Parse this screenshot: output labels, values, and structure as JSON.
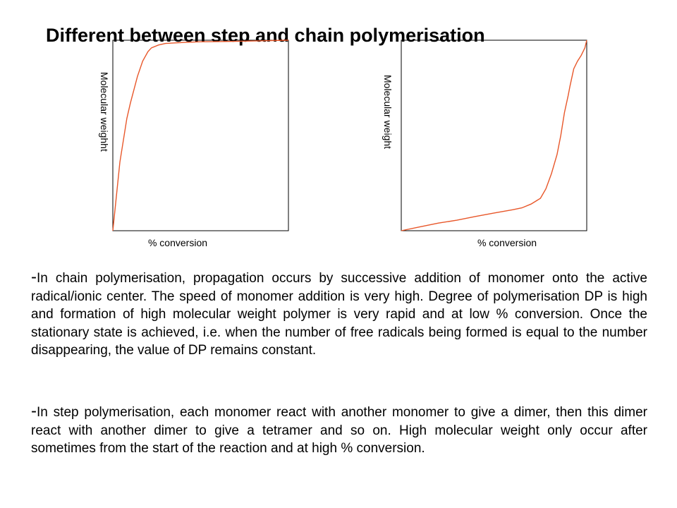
{
  "page": {
    "title": "Different between step and chain polymerisation"
  },
  "chart_data": [
    {
      "type": "line",
      "title": "",
      "xlabel": "% conversion",
      "ylabel": "Molecular weighht",
      "xlim": [
        0,
        100
      ],
      "ylim": [
        0,
        100
      ],
      "grid": false,
      "ticks": false,
      "line_color": "#e8572a",
      "series": [
        {
          "x": [
            0,
            4,
            8,
            10,
            14,
            17,
            20,
            22,
            26,
            30,
            40,
            50,
            60,
            70,
            80,
            90,
            100
          ],
          "y": [
            0,
            36,
            59,
            67,
            81,
            89,
            94,
            96,
            97.5,
            98.3,
            98.8,
            99.2,
            99.3,
            99.4,
            99.6,
            99.8,
            100
          ]
        }
      ]
    },
    {
      "type": "line",
      "title": "",
      "xlabel": "% conversion",
      "ylabel": "Molecular weight",
      "xlim": [
        0,
        100
      ],
      "ylim": [
        0,
        100
      ],
      "grid": false,
      "ticks": false,
      "line_color": "#e8572a",
      "series": [
        {
          "x": [
            0,
            10,
            20,
            30,
            40,
            50,
            60,
            65,
            70,
            75,
            78,
            81,
            84,
            86,
            88,
            90,
            91,
            93,
            95,
            97,
            99,
            100
          ],
          "y": [
            0,
            2,
            4,
            5.5,
            7.5,
            9.3,
            11,
            12,
            14,
            17,
            22,
            30,
            40,
            50,
            62,
            71,
            76,
            85,
            89,
            92,
            96,
            100
          ]
        }
      ]
    }
  ],
  "paragraphs": {
    "chain": {
      "bullet": "-",
      "text": "In chain polymerisation, propagation occurs by successive addition of monomer onto the active radical/ionic center. The speed of monomer addition is very high. Degree of polymerisation DP is high and formation of high molecular weight polymer is very rapid and at low % conversion. Once the stationary state is achieved, i.e. when the number of free radicals being formed is equal to the number disappearing, the value of DP remains constant."
    },
    "step": {
      "bullet": "-",
      "text": "In step polymerisation, each monomer react with another monomer to give a dimer, then this dimer react with another dimer to give a tetramer and so on. High molecular weight only occur after sometimes from the start of the reaction and at high % conversion."
    }
  }
}
